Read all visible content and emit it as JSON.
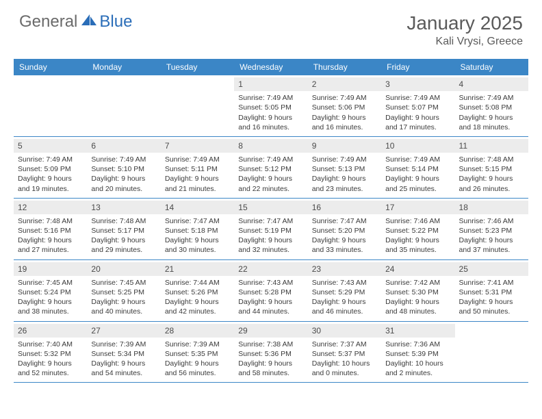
{
  "brand": {
    "part1": "General",
    "part2": "Blue"
  },
  "title": "January 2025",
  "location": "Kali Vrysi, Greece",
  "colors": {
    "header_bar": "#3b86c6",
    "day_band": "#ececec",
    "brand_gray": "#6a6a6a",
    "brand_blue": "#2a6db8",
    "text": "#3a3a3a",
    "row_border": "#3b86c6"
  },
  "day_headers": [
    "Sunday",
    "Monday",
    "Tuesday",
    "Wednesday",
    "Thursday",
    "Friday",
    "Saturday"
  ],
  "weeks": [
    [
      {
        "n": "",
        "sunrise": "",
        "sunset": "",
        "daylight": ""
      },
      {
        "n": "",
        "sunrise": "",
        "sunset": "",
        "daylight": ""
      },
      {
        "n": "",
        "sunrise": "",
        "sunset": "",
        "daylight": ""
      },
      {
        "n": "1",
        "sunrise": "Sunrise: 7:49 AM",
        "sunset": "Sunset: 5:05 PM",
        "daylight": "Daylight: 9 hours and 16 minutes."
      },
      {
        "n": "2",
        "sunrise": "Sunrise: 7:49 AM",
        "sunset": "Sunset: 5:06 PM",
        "daylight": "Daylight: 9 hours and 16 minutes."
      },
      {
        "n": "3",
        "sunrise": "Sunrise: 7:49 AM",
        "sunset": "Sunset: 5:07 PM",
        "daylight": "Daylight: 9 hours and 17 minutes."
      },
      {
        "n": "4",
        "sunrise": "Sunrise: 7:49 AM",
        "sunset": "Sunset: 5:08 PM",
        "daylight": "Daylight: 9 hours and 18 minutes."
      }
    ],
    [
      {
        "n": "5",
        "sunrise": "Sunrise: 7:49 AM",
        "sunset": "Sunset: 5:09 PM",
        "daylight": "Daylight: 9 hours and 19 minutes."
      },
      {
        "n": "6",
        "sunrise": "Sunrise: 7:49 AM",
        "sunset": "Sunset: 5:10 PM",
        "daylight": "Daylight: 9 hours and 20 minutes."
      },
      {
        "n": "7",
        "sunrise": "Sunrise: 7:49 AM",
        "sunset": "Sunset: 5:11 PM",
        "daylight": "Daylight: 9 hours and 21 minutes."
      },
      {
        "n": "8",
        "sunrise": "Sunrise: 7:49 AM",
        "sunset": "Sunset: 5:12 PM",
        "daylight": "Daylight: 9 hours and 22 minutes."
      },
      {
        "n": "9",
        "sunrise": "Sunrise: 7:49 AM",
        "sunset": "Sunset: 5:13 PM",
        "daylight": "Daylight: 9 hours and 23 minutes."
      },
      {
        "n": "10",
        "sunrise": "Sunrise: 7:49 AM",
        "sunset": "Sunset: 5:14 PM",
        "daylight": "Daylight: 9 hours and 25 minutes."
      },
      {
        "n": "11",
        "sunrise": "Sunrise: 7:48 AM",
        "sunset": "Sunset: 5:15 PM",
        "daylight": "Daylight: 9 hours and 26 minutes."
      }
    ],
    [
      {
        "n": "12",
        "sunrise": "Sunrise: 7:48 AM",
        "sunset": "Sunset: 5:16 PM",
        "daylight": "Daylight: 9 hours and 27 minutes."
      },
      {
        "n": "13",
        "sunrise": "Sunrise: 7:48 AM",
        "sunset": "Sunset: 5:17 PM",
        "daylight": "Daylight: 9 hours and 29 minutes."
      },
      {
        "n": "14",
        "sunrise": "Sunrise: 7:47 AM",
        "sunset": "Sunset: 5:18 PM",
        "daylight": "Daylight: 9 hours and 30 minutes."
      },
      {
        "n": "15",
        "sunrise": "Sunrise: 7:47 AM",
        "sunset": "Sunset: 5:19 PM",
        "daylight": "Daylight: 9 hours and 32 minutes."
      },
      {
        "n": "16",
        "sunrise": "Sunrise: 7:47 AM",
        "sunset": "Sunset: 5:20 PM",
        "daylight": "Daylight: 9 hours and 33 minutes."
      },
      {
        "n": "17",
        "sunrise": "Sunrise: 7:46 AM",
        "sunset": "Sunset: 5:22 PM",
        "daylight": "Daylight: 9 hours and 35 minutes."
      },
      {
        "n": "18",
        "sunrise": "Sunrise: 7:46 AM",
        "sunset": "Sunset: 5:23 PM",
        "daylight": "Daylight: 9 hours and 37 minutes."
      }
    ],
    [
      {
        "n": "19",
        "sunrise": "Sunrise: 7:45 AM",
        "sunset": "Sunset: 5:24 PM",
        "daylight": "Daylight: 9 hours and 38 minutes."
      },
      {
        "n": "20",
        "sunrise": "Sunrise: 7:45 AM",
        "sunset": "Sunset: 5:25 PM",
        "daylight": "Daylight: 9 hours and 40 minutes."
      },
      {
        "n": "21",
        "sunrise": "Sunrise: 7:44 AM",
        "sunset": "Sunset: 5:26 PM",
        "daylight": "Daylight: 9 hours and 42 minutes."
      },
      {
        "n": "22",
        "sunrise": "Sunrise: 7:43 AM",
        "sunset": "Sunset: 5:28 PM",
        "daylight": "Daylight: 9 hours and 44 minutes."
      },
      {
        "n": "23",
        "sunrise": "Sunrise: 7:43 AM",
        "sunset": "Sunset: 5:29 PM",
        "daylight": "Daylight: 9 hours and 46 minutes."
      },
      {
        "n": "24",
        "sunrise": "Sunrise: 7:42 AM",
        "sunset": "Sunset: 5:30 PM",
        "daylight": "Daylight: 9 hours and 48 minutes."
      },
      {
        "n": "25",
        "sunrise": "Sunrise: 7:41 AM",
        "sunset": "Sunset: 5:31 PM",
        "daylight": "Daylight: 9 hours and 50 minutes."
      }
    ],
    [
      {
        "n": "26",
        "sunrise": "Sunrise: 7:40 AM",
        "sunset": "Sunset: 5:32 PM",
        "daylight": "Daylight: 9 hours and 52 minutes."
      },
      {
        "n": "27",
        "sunrise": "Sunrise: 7:39 AM",
        "sunset": "Sunset: 5:34 PM",
        "daylight": "Daylight: 9 hours and 54 minutes."
      },
      {
        "n": "28",
        "sunrise": "Sunrise: 7:39 AM",
        "sunset": "Sunset: 5:35 PM",
        "daylight": "Daylight: 9 hours and 56 minutes."
      },
      {
        "n": "29",
        "sunrise": "Sunrise: 7:38 AM",
        "sunset": "Sunset: 5:36 PM",
        "daylight": "Daylight: 9 hours and 58 minutes."
      },
      {
        "n": "30",
        "sunrise": "Sunrise: 7:37 AM",
        "sunset": "Sunset: 5:37 PM",
        "daylight": "Daylight: 10 hours and 0 minutes."
      },
      {
        "n": "31",
        "sunrise": "Sunrise: 7:36 AM",
        "sunset": "Sunset: 5:39 PM",
        "daylight": "Daylight: 10 hours and 2 minutes."
      },
      {
        "n": "",
        "sunrise": "",
        "sunset": "",
        "daylight": ""
      }
    ]
  ]
}
